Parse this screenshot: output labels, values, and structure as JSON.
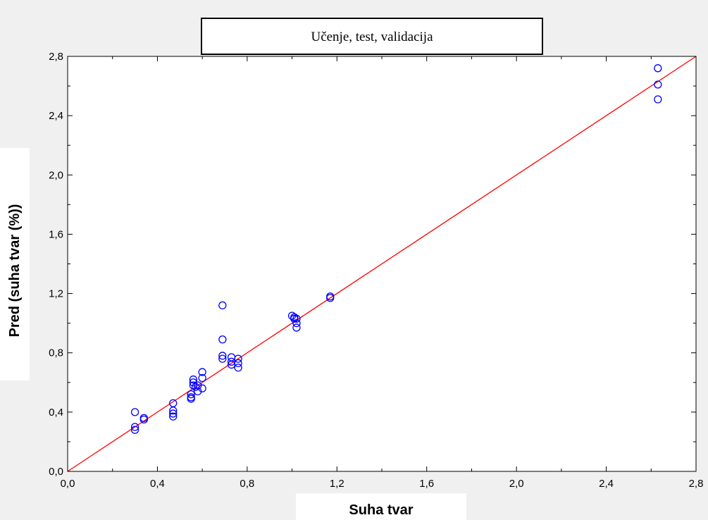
{
  "chart_data": {
    "type": "scatter",
    "title": "Učenje, test, validacija",
    "xlabel": "Suha tvar",
    "ylabel": "Pred (suha tvar (%))",
    "xlim": [
      0.0,
      2.8
    ],
    "ylim": [
      0.0,
      2.8
    ],
    "x_ticks": [
      "0,0",
      "0,4",
      "0,8",
      "1,2",
      "1,6",
      "2,0",
      "2,4",
      "2,8"
    ],
    "y_ticks": [
      "0,0",
      "0,4",
      "0,8",
      "1,2",
      "1,6",
      "2,0",
      "2,4",
      "2,8"
    ],
    "grid": false,
    "point_color": "#0000ff",
    "line_color": "#ff0000",
    "reference_line": {
      "from": [
        0.0,
        0.0
      ],
      "to": [
        2.8,
        2.8
      ]
    },
    "points": [
      [
        0.3,
        0.4
      ],
      [
        0.3,
        0.3
      ],
      [
        0.3,
        0.28
      ],
      [
        0.34,
        0.36
      ],
      [
        0.34,
        0.35
      ],
      [
        0.47,
        0.46
      ],
      [
        0.47,
        0.41
      ],
      [
        0.47,
        0.39
      ],
      [
        0.47,
        0.37
      ],
      [
        0.55,
        0.52
      ],
      [
        0.55,
        0.5
      ],
      [
        0.55,
        0.49
      ],
      [
        0.56,
        0.62
      ],
      [
        0.56,
        0.6
      ],
      [
        0.56,
        0.58
      ],
      [
        0.57,
        0.57
      ],
      [
        0.58,
        0.58
      ],
      [
        0.58,
        0.54
      ],
      [
        0.6,
        0.67
      ],
      [
        0.6,
        0.63
      ],
      [
        0.6,
        0.56
      ],
      [
        0.69,
        1.12
      ],
      [
        0.69,
        0.89
      ],
      [
        0.69,
        0.78
      ],
      [
        0.69,
        0.76
      ],
      [
        0.73,
        0.77
      ],
      [
        0.73,
        0.74
      ],
      [
        0.73,
        0.72
      ],
      [
        0.76,
        0.76
      ],
      [
        0.76,
        0.73
      ],
      [
        0.76,
        0.7
      ],
      [
        1.0,
        1.05
      ],
      [
        1.01,
        1.04
      ],
      [
        1.01,
        1.03
      ],
      [
        1.02,
        1.03
      ],
      [
        1.02,
        1.0
      ],
      [
        1.02,
        0.97
      ],
      [
        1.17,
        1.18
      ],
      [
        1.17,
        1.17
      ],
      [
        2.63,
        2.72
      ],
      [
        2.63,
        2.61
      ],
      [
        2.63,
        2.51
      ]
    ]
  }
}
